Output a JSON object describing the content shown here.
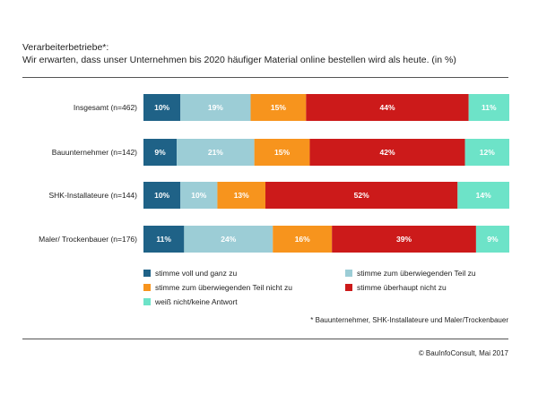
{
  "title": {
    "line1": "Verarbeiterbetriebe*:",
    "line2": "Wir erwarten, dass unser Unternehmen  bis 2020 häufiger Material online bestellen wird als heute. (in %)"
  },
  "footnote": "* Bauunternehmer, SHK-Installateure und Maler/Trockenbauer",
  "source": "© BauInfoConsult, Mai 2017",
  "chart_data": {
    "type": "bar",
    "orientation": "horizontal",
    "stacked": true,
    "title": "Verarbeiterbetriebe*: Wir erwarten, dass unser Unternehmen  bis 2020 häufiger Material online bestellen wird als heute. (in %)",
    "categories": [
      "Insgesamt (n=462)",
      "Bauunternehmer (n=142)",
      "SHK-Installateure (n=144)",
      "Maler/ Trockenbauer (n=176)"
    ],
    "series": [
      {
        "name": "stimme voll und ganz zu",
        "color": "#1f6287",
        "values": [
          10,
          9,
          10,
          11
        ]
      },
      {
        "name": "stimme zum überwiegenden Teil zu",
        "color": "#9ccdd6",
        "values": [
          19,
          21,
          10,
          24
        ]
      },
      {
        "name": "stimme zum überwiegenden Teil nicht zu",
        "color": "#f7941d",
        "values": [
          15,
          15,
          13,
          16
        ]
      },
      {
        "name": "stimme überhaupt nicht zu",
        "color": "#cc1a1a",
        "values": [
          44,
          42,
          52,
          39
        ]
      },
      {
        "name": "weiß nicht/keine Antwort",
        "color": "#6de3c8",
        "values": [
          11,
          12,
          14,
          9
        ]
      }
    ],
    "value_suffix": "%",
    "legend_position": "bottom",
    "grid": false
  }
}
